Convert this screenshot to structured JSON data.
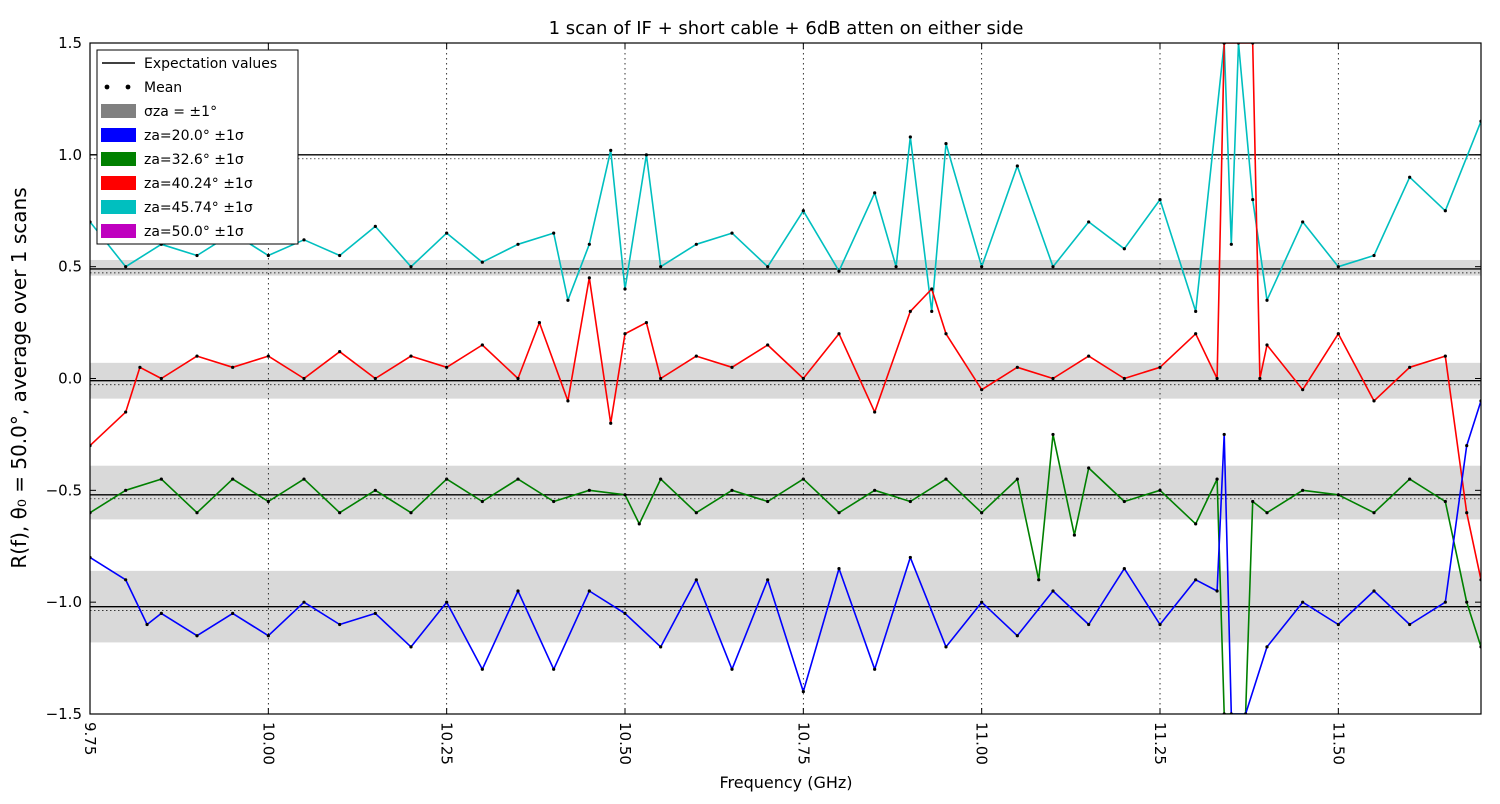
{
  "chart_data": {
    "type": "line",
    "title": "1 scan of IF + short cable + 6dB atten on either side",
    "xlabel": "Frequency (GHz)",
    "ylabel": "R(f), θ₀ = 50.0°, average over 1 scans",
    "xlim": [
      9.75,
      11.7
    ],
    "ylim": [
      -1.5,
      1.5
    ],
    "xticks": [
      "9.75",
      "10.00",
      "10.25",
      "10.50",
      "10.75",
      "11.00",
      "11.25",
      "11.50"
    ],
    "xtick_values": [
      9.75,
      10.0,
      10.25,
      10.5,
      10.75,
      11.0,
      11.25,
      11.5
    ],
    "yticks": [
      "1.5",
      "1.0",
      "0.5",
      "0.0",
      "−0.5",
      "−1.0",
      "−1.5"
    ],
    "ytick_values": [
      1.5,
      1.0,
      0.5,
      0.0,
      -0.5,
      -1.0,
      -1.5
    ],
    "grid": "vertical dotted",
    "legend_position": "top-left",
    "legend": [
      {
        "label": "Expectation values",
        "kind": "line",
        "color": "#000000"
      },
      {
        "label": "Mean",
        "kind": "dots",
        "color": "#000000"
      },
      {
        "label": "σza = ±1°",
        "kind": "patch",
        "color": "#808080"
      },
      {
        "label": "za=20.0° ±1σ",
        "kind": "patch",
        "color": "#0000ff"
      },
      {
        "label": "za=32.6° ±1σ",
        "kind": "patch",
        "color": "#008000"
      },
      {
        "label": "za=40.24° ±1σ",
        "kind": "patch",
        "color": "#ff0000"
      },
      {
        "label": "za=45.74° ±1σ",
        "kind": "patch",
        "color": "#00bfbf"
      },
      {
        "label": "za=50.0° ±1σ",
        "kind": "patch",
        "color": "#bf00bf"
      }
    ],
    "expectation_lines": [
      1.0,
      0.49,
      -0.01,
      -0.52,
      -1.02
    ],
    "sigma_bands": [
      [
        0.46,
        0.53
      ],
      [
        -0.09,
        0.07
      ],
      [
        -0.63,
        -0.39
      ],
      [
        -1.18,
        -0.86
      ]
    ],
    "series": [
      {
        "color": "#00bfbf",
        "x": [
          9.75,
          9.8,
          9.85,
          9.9,
          9.95,
          10.0,
          10.05,
          10.1,
          10.15,
          10.2,
          10.25,
          10.3,
          10.35,
          10.4,
          10.42,
          10.45,
          10.48,
          10.5,
          10.53,
          10.55,
          10.6,
          10.65,
          10.7,
          10.75,
          10.8,
          10.85,
          10.88,
          10.9,
          10.93,
          10.95,
          11.0,
          11.05,
          11.1,
          11.15,
          11.2,
          11.25,
          11.3,
          11.34,
          11.35,
          11.36,
          11.38,
          11.4,
          11.45,
          11.5,
          11.55,
          11.6,
          11.65,
          11.7
        ],
        "y": [
          0.7,
          0.5,
          0.6,
          0.55,
          0.65,
          0.55,
          0.62,
          0.55,
          0.68,
          0.5,
          0.65,
          0.52,
          0.6,
          0.65,
          0.35,
          0.6,
          1.02,
          0.4,
          1.0,
          0.5,
          0.6,
          0.65,
          0.5,
          0.75,
          0.48,
          0.83,
          0.5,
          1.08,
          0.3,
          1.05,
          0.5,
          0.95,
          0.5,
          0.7,
          0.58,
          0.8,
          0.3,
          1.5,
          0.6,
          1.5,
          0.8,
          0.35,
          0.7,
          0.5,
          0.55,
          0.9,
          0.75,
          1.15
        ]
      },
      {
        "color": "#ff0000",
        "x": [
          9.75,
          9.8,
          9.82,
          9.85,
          9.9,
          9.95,
          10.0,
          10.05,
          10.1,
          10.15,
          10.2,
          10.25,
          10.3,
          10.35,
          10.38,
          10.42,
          10.45,
          10.48,
          10.5,
          10.53,
          10.55,
          10.6,
          10.65,
          10.7,
          10.75,
          10.8,
          10.85,
          10.9,
          10.93,
          10.95,
          11.0,
          11.05,
          11.1,
          11.15,
          11.2,
          11.25,
          11.3,
          11.33,
          11.34,
          11.38,
          11.39,
          11.4,
          11.45,
          11.5,
          11.55,
          11.6,
          11.65,
          11.68,
          11.7
        ],
        "y": [
          -0.3,
          -0.15,
          0.05,
          0.0,
          0.1,
          0.05,
          0.1,
          0.0,
          0.12,
          0.0,
          0.1,
          0.05,
          0.15,
          0.0,
          0.25,
          -0.1,
          0.45,
          -0.2,
          0.2,
          0.25,
          0.0,
          0.1,
          0.05,
          0.15,
          0.0,
          0.2,
          -0.15,
          0.3,
          0.4,
          0.2,
          -0.05,
          0.05,
          0.0,
          0.1,
          0.0,
          0.05,
          0.2,
          0.0,
          1.5,
          1.5,
          0.0,
          0.15,
          -0.05,
          0.2,
          -0.1,
          0.05,
          0.1,
          -0.6,
          -0.9
        ]
      },
      {
        "color": "#008000",
        "x": [
          9.75,
          9.8,
          9.85,
          9.9,
          9.95,
          10.0,
          10.05,
          10.1,
          10.15,
          10.2,
          10.25,
          10.3,
          10.35,
          10.4,
          10.45,
          10.5,
          10.52,
          10.55,
          10.6,
          10.65,
          10.7,
          10.75,
          10.8,
          10.85,
          10.9,
          10.95,
          11.0,
          11.05,
          11.08,
          11.1,
          11.13,
          11.15,
          11.2,
          11.25,
          11.3,
          11.33,
          11.34,
          11.37,
          11.38,
          11.4,
          11.45,
          11.5,
          11.55,
          11.6,
          11.65,
          11.68,
          11.7
        ],
        "y": [
          -0.6,
          -0.5,
          -0.45,
          -0.6,
          -0.45,
          -0.55,
          -0.45,
          -0.6,
          -0.5,
          -0.6,
          -0.45,
          -0.55,
          -0.45,
          -0.55,
          -0.5,
          -0.52,
          -0.65,
          -0.45,
          -0.6,
          -0.5,
          -0.55,
          -0.45,
          -0.6,
          -0.5,
          -0.55,
          -0.45,
          -0.6,
          -0.45,
          -0.9,
          -0.25,
          -0.7,
          -0.4,
          -0.55,
          -0.5,
          -0.65,
          -0.45,
          -1.5,
          -1.5,
          -0.55,
          -0.6,
          -0.5,
          -0.52,
          -0.6,
          -0.45,
          -0.55,
          -1.0,
          -1.2
        ]
      },
      {
        "color": "#0000ff",
        "x": [
          9.75,
          9.8,
          9.83,
          9.85,
          9.9,
          9.95,
          10.0,
          10.05,
          10.1,
          10.15,
          10.2,
          10.25,
          10.3,
          10.35,
          10.4,
          10.45,
          10.5,
          10.55,
          10.6,
          10.65,
          10.7,
          10.75,
          10.8,
          10.85,
          10.9,
          10.95,
          11.0,
          11.05,
          11.1,
          11.15,
          11.2,
          11.25,
          11.3,
          11.33,
          11.34,
          11.35,
          11.37,
          11.4,
          11.45,
          11.5,
          11.55,
          11.6,
          11.65,
          11.68,
          11.7
        ],
        "y": [
          -0.8,
          -0.9,
          -1.1,
          -1.05,
          -1.15,
          -1.05,
          -1.15,
          -1.0,
          -1.1,
          -1.05,
          -1.2,
          -1.0,
          -1.3,
          -0.95,
          -1.3,
          -0.95,
          -1.05,
          -1.2,
          -0.9,
          -1.3,
          -0.9,
          -1.4,
          -0.85,
          -1.3,
          -0.8,
          -1.2,
          -1.0,
          -1.15,
          -0.95,
          -1.1,
          -0.85,
          -1.1,
          -0.9,
          -0.95,
          -0.25,
          -1.5,
          -1.5,
          -1.2,
          -1.0,
          -1.1,
          -0.95,
          -1.1,
          -1.0,
          -0.3,
          -0.1
        ]
      }
    ]
  }
}
